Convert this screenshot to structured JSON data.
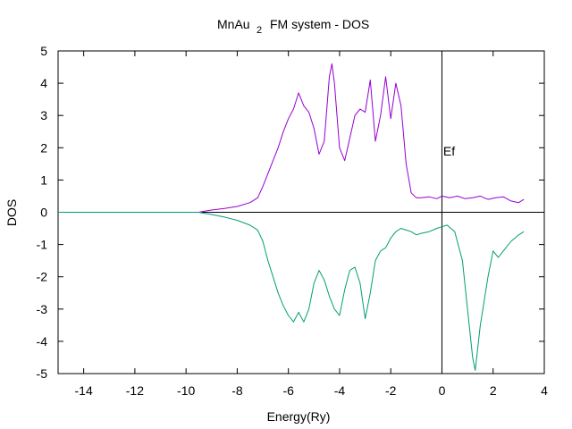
{
  "chart_data": {
    "type": "line",
    "title": "MnAu",
    "title_subscript": "2",
    "title_suffix": "FM system - DOS",
    "xlabel": "Energy(Ry)",
    "ylabel": "DOS",
    "xlim": [
      -15,
      4
    ],
    "ylim": [
      -5,
      5
    ],
    "x_ticks": [
      -14,
      -12,
      -10,
      -8,
      -6,
      -4,
      -2,
      0,
      2,
      4
    ],
    "y_ticks": [
      -5,
      -4,
      -3,
      -2,
      -1,
      0,
      1,
      2,
      3,
      4,
      5
    ],
    "grid": false,
    "annotations": [
      {
        "text": "Ef",
        "x": 0.05,
        "y": 1.9
      }
    ],
    "reference_lines": {
      "horizontal_y": 0,
      "vertical_x": 0
    },
    "series": [
      {
        "color": "#9400d3",
        "x": [
          -15,
          -9.5,
          -9.3,
          -9.0,
          -8.5,
          -8.0,
          -7.5,
          -7.2,
          -7.0,
          -6.8,
          -6.6,
          -6.4,
          -6.2,
          -6.0,
          -5.8,
          -5.6,
          -5.4,
          -5.2,
          -5.0,
          -4.8,
          -4.6,
          -4.4,
          -4.3,
          -4.2,
          -4.0,
          -3.8,
          -3.6,
          -3.4,
          -3.2,
          -3.0,
          -2.8,
          -2.6,
          -2.4,
          -2.2,
          -2.0,
          -1.8,
          -1.6,
          -1.4,
          -1.2,
          -1.0,
          -0.8,
          -0.5,
          -0.2,
          0,
          0.3,
          0.6,
          0.9,
          1.2,
          1.5,
          1.8,
          2.1,
          2.4,
          2.7,
          3.0,
          3.2
        ],
        "values": [
          0,
          0,
          0.03,
          0.07,
          0.12,
          0.18,
          0.3,
          0.45,
          0.8,
          1.2,
          1.6,
          2.0,
          2.5,
          2.9,
          3.2,
          3.7,
          3.3,
          3.1,
          2.6,
          1.8,
          2.2,
          4.2,
          4.6,
          4.0,
          2.0,
          1.6,
          2.3,
          3.0,
          3.2,
          3.1,
          4.1,
          2.2,
          3.0,
          4.2,
          2.9,
          4.0,
          3.3,
          1.5,
          0.6,
          0.45,
          0.45,
          0.48,
          0.42,
          0.5,
          0.45,
          0.5,
          0.42,
          0.45,
          0.5,
          0.4,
          0.45,
          0.48,
          0.35,
          0.3,
          0.4
        ]
      },
      {
        "color": "#009e73",
        "x": [
          -15,
          -9.5,
          -9.3,
          -9.0,
          -8.5,
          -8.0,
          -7.5,
          -7.2,
          -7.0,
          -6.8,
          -6.6,
          -6.4,
          -6.2,
          -6.0,
          -5.8,
          -5.6,
          -5.4,
          -5.2,
          -5.0,
          -4.8,
          -4.6,
          -4.4,
          -4.2,
          -4.0,
          -3.8,
          -3.6,
          -3.4,
          -3.2,
          -3.0,
          -2.8,
          -2.6,
          -2.4,
          -2.2,
          -2.0,
          -1.8,
          -1.6,
          -1.4,
          -1.2,
          -1.0,
          -0.8,
          -0.5,
          -0.2,
          0,
          0.2,
          0.5,
          0.8,
          1.0,
          1.2,
          1.3,
          1.5,
          1.8,
          2.0,
          2.2,
          2.4,
          2.7,
          3.0,
          3.2
        ],
        "values": [
          0,
          0,
          -0.03,
          -0.07,
          -0.15,
          -0.25,
          -0.4,
          -0.55,
          -0.9,
          -1.5,
          -2.0,
          -2.5,
          -2.9,
          -3.2,
          -3.4,
          -3.1,
          -3.4,
          -3.0,
          -2.2,
          -1.8,
          -2.1,
          -2.6,
          -3.0,
          -3.2,
          -2.4,
          -1.8,
          -1.7,
          -2.2,
          -3.3,
          -2.5,
          -1.5,
          -1.2,
          -1.1,
          -0.8,
          -0.6,
          -0.5,
          -0.55,
          -0.6,
          -0.7,
          -0.65,
          -0.6,
          -0.5,
          -0.45,
          -0.4,
          -0.6,
          -1.5,
          -3.0,
          -4.5,
          -4.9,
          -3.5,
          -2.0,
          -1.2,
          -1.4,
          -1.2,
          -0.9,
          -0.7,
          -0.6
        ]
      }
    ]
  }
}
